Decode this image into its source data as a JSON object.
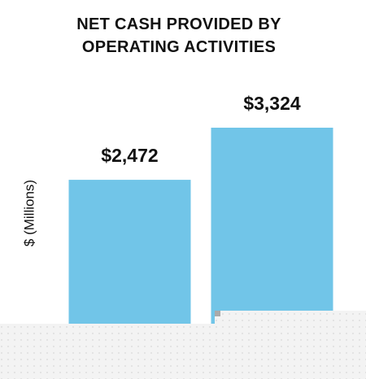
{
  "chart_data": {
    "type": "bar",
    "title": "NET CASH PROVIDED BY OPERATING ACTIVITIES",
    "y_label": "$ (Millions)",
    "categories": [
      null,
      null
    ],
    "values": [
      2472,
      3324
    ],
    "value_labels": [
      "$2,472",
      "$3,324"
    ],
    "color": "#71c5e8"
  }
}
